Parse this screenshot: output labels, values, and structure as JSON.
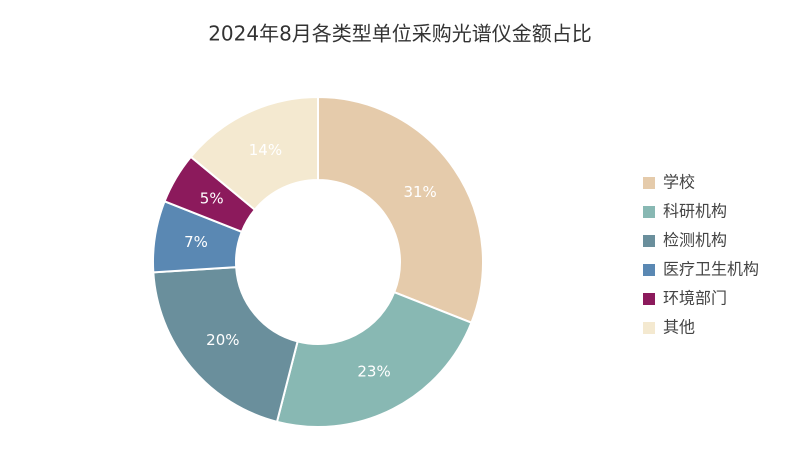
{
  "chart_data": {
    "type": "pie",
    "title": "2024年8月各类型单位采购光谱仪金额占比",
    "categories": [
      "学校",
      "科研机构",
      "检测机构",
      "医疗卫生机构",
      "环境部门",
      "其他"
    ],
    "values": [
      31,
      23,
      20,
      7,
      5,
      14
    ],
    "value_labels": [
      "31%",
      "23%",
      "20%",
      "7%",
      "5%",
      "14%"
    ],
    "colors": [
      "#e5cbab",
      "#88b8b3",
      "#6a8f9c",
      "#5a88b3",
      "#8c1a5c",
      "#f4e9d0"
    ],
    "donut": true,
    "legend": "right"
  }
}
